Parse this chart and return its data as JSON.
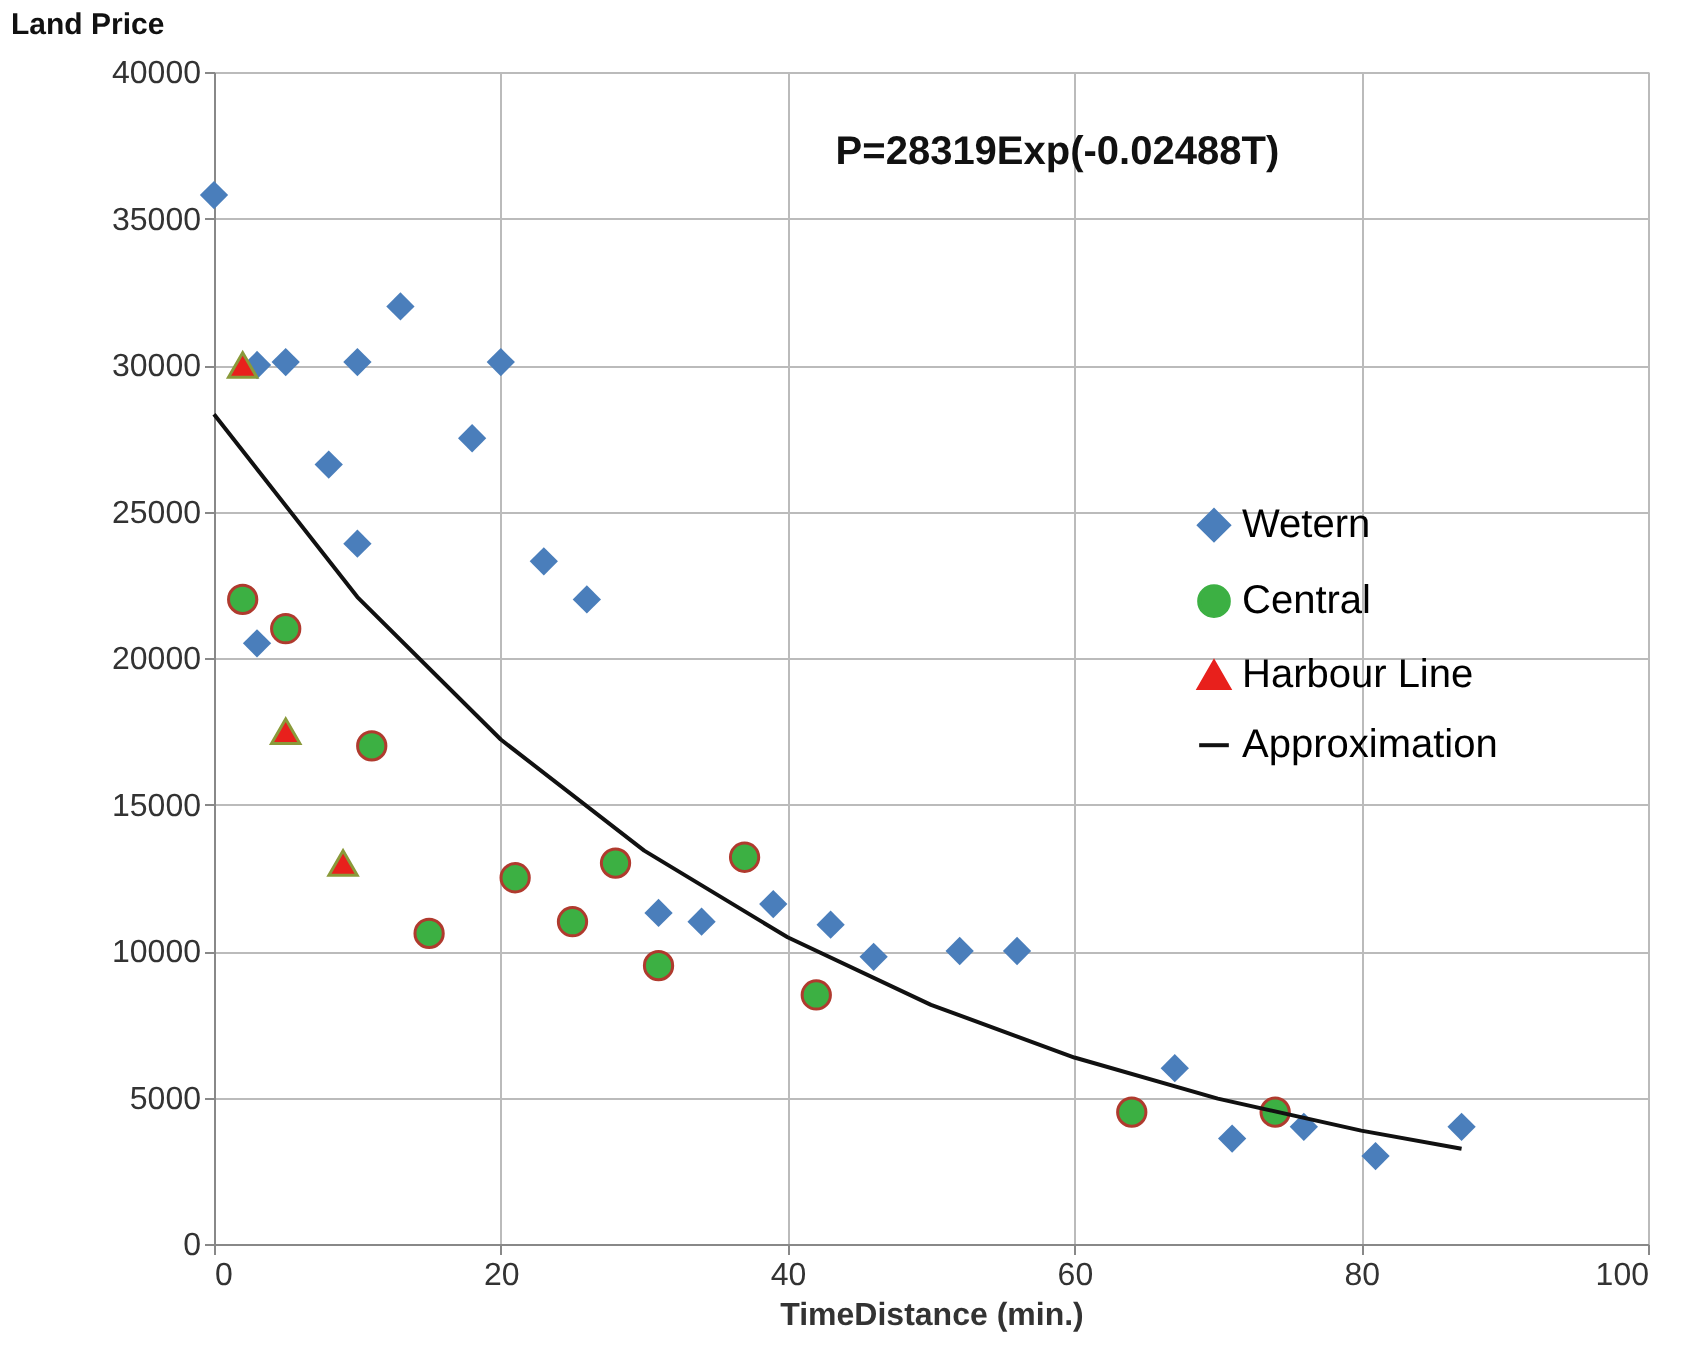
{
  "chart_data": {
    "type": "scatter",
    "ylabel": "Land Price",
    "xlabel": "TimeDistance (min.)",
    "annotations": [
      "P=28319Exp(-0.02488T)"
    ],
    "xlim": [
      0,
      100
    ],
    "xticks": [
      0,
      20,
      40,
      60,
      80,
      100
    ],
    "ylim": [
      0,
      40000
    ],
    "yticks": [
      0,
      5000,
      10000,
      15000,
      20000,
      25000,
      30000,
      35000,
      40000
    ],
    "grid": true,
    "legend": "right",
    "series": [
      {
        "name": "Wetern",
        "color": "#4a7ebb",
        "marker": "diamond",
        "x": [
          0,
          3,
          5,
          10,
          13,
          20,
          8,
          18,
          10,
          23,
          26,
          3,
          31,
          34,
          39,
          43,
          46,
          52,
          56,
          67,
          71,
          76,
          81,
          87
        ],
        "values": [
          35800,
          30000,
          30100,
          30100,
          32000,
          30100,
          26600,
          27500,
          23900,
          23300,
          22000,
          20500,
          11300,
          11000,
          11600,
          10900,
          9800,
          10000,
          10000,
          6000,
          3600,
          4000,
          3000,
          4000
        ]
      },
      {
        "name": "Central",
        "color": "#3cb043",
        "marker": "circle",
        "x": [
          2,
          5,
          11,
          15,
          21,
          25,
          28,
          31,
          37,
          42,
          64,
          74
        ],
        "values": [
          22000,
          21000,
          17000,
          10600,
          12500,
          11000,
          13000,
          9500,
          13200,
          8500,
          4500,
          4500
        ]
      },
      {
        "name": "Harbour Line",
        "color": "#e8201c",
        "marker": "triangle",
        "x": [
          2,
          5,
          9
        ],
        "values": [
          30000,
          17500,
          13000
        ]
      },
      {
        "name": "Approximation",
        "type": "line",
        "color": "#111111",
        "marker": "none",
        "line_style": "solid",
        "x": [
          0,
          10,
          20,
          30,
          40,
          50,
          60,
          70,
          80,
          87
        ],
        "values": [
          28319,
          22080,
          17217,
          13425,
          10469,
          8163,
          6365,
          4963,
          3870,
          3251
        ]
      }
    ]
  }
}
